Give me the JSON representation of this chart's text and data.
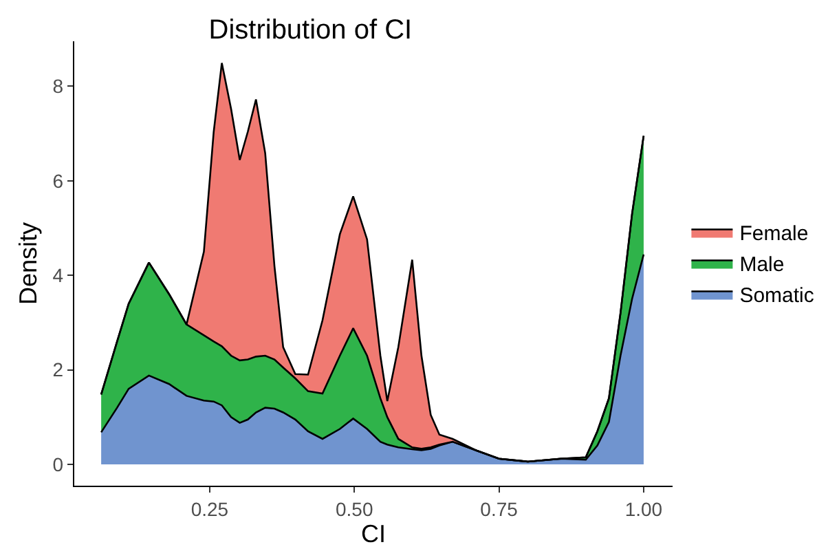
{
  "chart_data": {
    "type": "area",
    "stacked": true,
    "title": "Distribution of CI",
    "xlabel": "CI",
    "ylabel": "Density",
    "x": [
      0.0625,
      0.09,
      0.11,
      0.145,
      0.18,
      0.21,
      0.24,
      0.257,
      0.271,
      0.287,
      0.302,
      0.316,
      0.33,
      0.346,
      0.362,
      0.377,
      0.398,
      0.42,
      0.445,
      0.475,
      0.498,
      0.522,
      0.545,
      0.557,
      0.576,
      0.6,
      0.616,
      0.632,
      0.647,
      0.67,
      0.71,
      0.75,
      0.8,
      0.857,
      0.9,
      0.92,
      0.94,
      0.96,
      0.98,
      1.0
    ],
    "series": [
      {
        "name": "Somatic",
        "color": "#7094cf",
        "values": [
          0.68,
          1.2,
          1.6,
          1.88,
          1.7,
          1.45,
          1.35,
          1.33,
          1.25,
          1.0,
          0.88,
          0.95,
          1.1,
          1.2,
          1.18,
          1.1,
          0.95,
          0.7,
          0.54,
          0.75,
          0.97,
          0.75,
          0.48,
          0.42,
          0.36,
          0.32,
          0.3,
          0.33,
          0.4,
          0.48,
          0.3,
          0.12,
          0.06,
          0.12,
          0.1,
          0.4,
          0.9,
          2.3,
          3.5,
          4.44
        ]
      },
      {
        "name": "Male",
        "color": "#2fb34a",
        "values": [
          0.8,
          1.4,
          1.8,
          2.39,
          1.9,
          1.51,
          1.38,
          1.27,
          1.25,
          1.3,
          1.32,
          1.27,
          1.18,
          1.1,
          1.04,
          0.95,
          0.87,
          0.85,
          0.96,
          1.55,
          1.91,
          1.55,
          0.92,
          0.58,
          0.18,
          0.04,
          0.03,
          0.03,
          0.02,
          0,
          0,
          0,
          0,
          0,
          0.05,
          0.3,
          0.5,
          0.9,
          1.8,
          2.51
        ]
      },
      {
        "name": "Female",
        "color": "#f07a72",
        "values": [
          0,
          0,
          0,
          0,
          0,
          0,
          1.77,
          4.44,
          5.99,
          5.22,
          4.24,
          4.82,
          5.44,
          4.28,
          1.97,
          0.43,
          0.09,
          0.35,
          1.55,
          2.57,
          2.79,
          2.46,
          0.9,
          0.34,
          1.94,
          3.97,
          1.97,
          0.69,
          0.21,
          0.06,
          0,
          0,
          0,
          0,
          0,
          0,
          0,
          0,
          0,
          0
        ]
      }
    ],
    "xlim": [
      0.016,
      1.05
    ],
    "ylim": [
      -0.45,
      8.95
    ],
    "xticks": [
      {
        "value": 0.25,
        "label": "0.25"
      },
      {
        "value": 0.5,
        "label": "0.50"
      },
      {
        "value": 0.75,
        "label": "0.75"
      },
      {
        "value": 1.0,
        "label": "1.00"
      }
    ],
    "yticks": [
      0,
      2,
      4,
      6,
      8
    ],
    "legend": "right"
  }
}
